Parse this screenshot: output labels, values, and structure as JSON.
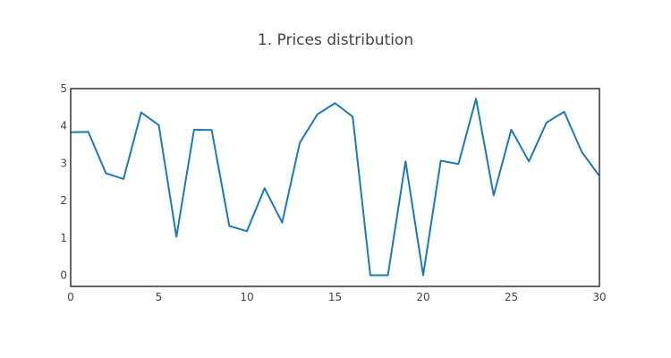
{
  "chart_data": {
    "type": "line",
    "title": "1. Prices distribution",
    "xlabel": "",
    "ylabel": "",
    "xlim": [
      0,
      30
    ],
    "ylim": [
      -0.3,
      5
    ],
    "xticks": [
      0,
      5,
      10,
      15,
      20,
      25,
      30
    ],
    "yticks": [
      0,
      1,
      2,
      3,
      4,
      5
    ],
    "grid": false,
    "line_color": "#1f77b4",
    "x": [
      0,
      1,
      2,
      3,
      4,
      5,
      6,
      7,
      8,
      9,
      10,
      11,
      12,
      13,
      14,
      15,
      16,
      17,
      18,
      19,
      20,
      21,
      22,
      23,
      24,
      25,
      26,
      27,
      28,
      29,
      30
    ],
    "series": [
      {
        "values": [
          3.83,
          3.84,
          2.73,
          2.58,
          4.36,
          4.02,
          1.03,
          3.9,
          3.89,
          1.32,
          1.18,
          2.33,
          1.41,
          3.55,
          4.31,
          4.61,
          4.25,
          0.0,
          0.0,
          3.05,
          0.0,
          3.07,
          2.98,
          4.73,
          2.14,
          3.9,
          3.05,
          4.09,
          4.38,
          3.3,
          2.66
        ]
      }
    ]
  }
}
